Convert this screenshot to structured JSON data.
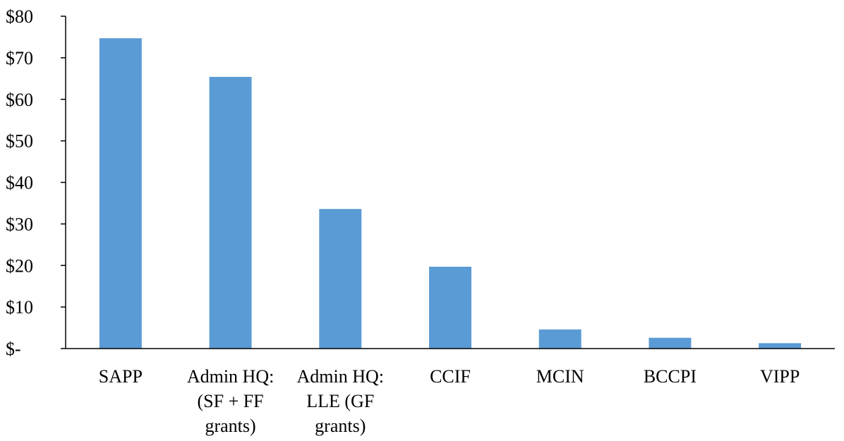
{
  "chart_data": {
    "type": "bar",
    "categories": [
      [
        "SAPP"
      ],
      [
        "Admin HQ:",
        "(SF + FF",
        "grants)"
      ],
      [
        "Admin HQ:",
        "LLE (GF",
        "grants)"
      ],
      [
        "CCIF"
      ],
      [
        "MCIN"
      ],
      [
        "BCCPI"
      ],
      [
        "VIPP"
      ]
    ],
    "values": [
      74.7,
      65.4,
      33.6,
      19.7,
      4.6,
      2.6,
      1.3
    ],
    "y_ticks": [
      {
        "value": 0,
        "label": "$-"
      },
      {
        "value": 10,
        "label": "$10"
      },
      {
        "value": 20,
        "label": "$20"
      },
      {
        "value": 30,
        "label": "$30"
      },
      {
        "value": 40,
        "label": "$40"
      },
      {
        "value": 50,
        "label": "$50"
      },
      {
        "value": 60,
        "label": "$60"
      },
      {
        "value": 70,
        "label": "$70"
      },
      {
        "value": 80,
        "label": "$80"
      }
    ],
    "ylim": [
      0,
      80
    ],
    "title": "",
    "xlabel": "",
    "ylabel": "",
    "grid": false,
    "legend": "none",
    "bar_color": "#5b9bd5"
  }
}
